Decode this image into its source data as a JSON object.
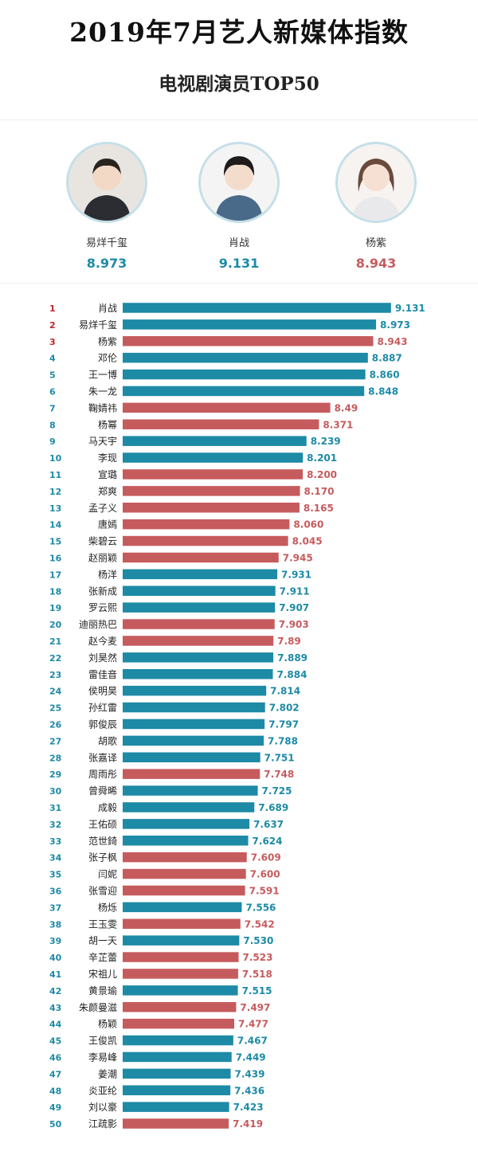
{
  "header": {
    "title": "2019年7月艺人新媒体指数",
    "subtitle": "电视剧演员TOP50"
  },
  "colors": {
    "teal": "#1d8aa6",
    "red": "#c65b5e",
    "rank_red": "#c0232b",
    "rank_teal": "#1d8aa6"
  },
  "top3": [
    {
      "name": "易烊千玺",
      "score": "8.973",
      "color": "teal"
    },
    {
      "name": "肖战",
      "score": "9.131",
      "color": "teal"
    },
    {
      "name": "杨紫",
      "score": "8.943",
      "color": "red"
    }
  ],
  "chart_data": {
    "type": "bar",
    "orientation": "horizontal",
    "value_labels": [
      "9.131",
      "8.973",
      "8.943",
      "8.887",
      "8.860",
      "8.848",
      "8.49",
      "8.371",
      "8.239",
      "8.201",
      "8.200",
      "8.170",
      "8.165",
      "8.060",
      "8.045",
      "7.945",
      "7.931",
      "7.911",
      "7.907",
      "7.903",
      "7.89",
      "7.889",
      "7.884",
      "7.814",
      "7.802",
      "7.797",
      "7.788",
      "7.751",
      "7.748",
      "7.725",
      "7.689",
      "7.637",
      "7.624",
      "7.609",
      "7.600",
      "7.591",
      "7.556",
      "7.542",
      "7.530",
      "7.523",
      "7.518",
      "7.515",
      "7.497",
      "7.477",
      "7.467",
      "7.449",
      "7.439",
      "7.436",
      "7.423",
      "7.419"
    ],
    "categories": [
      "肖战",
      "易烊千玺",
      "杨紫",
      "邓伦",
      "王一博",
      "朱一龙",
      "鞠婧祎",
      "杨幂",
      "马天宇",
      "李现",
      "宣璐",
      "郑爽",
      "孟子义",
      "唐嫣",
      "柴碧云",
      "赵丽颖",
      "杨洋",
      "张新成",
      "罗云熙",
      "迪丽热巴",
      "赵今麦",
      "刘昊然",
      "雷佳音",
      "侯明昊",
      "孙红雷",
      "郭俊辰",
      "胡歌",
      "张嘉译",
      "周雨彤",
      "曾舜晞",
      "成毅",
      "王佑硕",
      "范世錡",
      "张子枫",
      "闫妮",
      "张雪迎",
      "杨烁",
      "王玉雯",
      "胡一天",
      "辛芷蕾",
      "宋祖儿",
      "黄景瑜",
      "朱颜曼滋",
      "杨颖",
      "王俊凯",
      "李易峰",
      "姜潮",
      "炎亚纶",
      "刘以豪",
      "江疏影"
    ],
    "values": [
      9.131,
      8.973,
      8.943,
      8.887,
      8.86,
      8.848,
      8.49,
      8.371,
      8.239,
      8.201,
      8.2,
      8.17,
      8.165,
      8.06,
      8.045,
      7.945,
      7.931,
      7.911,
      7.907,
      7.903,
      7.89,
      7.889,
      7.884,
      7.814,
      7.802,
      7.797,
      7.788,
      7.751,
      7.748,
      7.725,
      7.689,
      7.637,
      7.624,
      7.609,
      7.6,
      7.591,
      7.556,
      7.542,
      7.53,
      7.523,
      7.518,
      7.515,
      7.497,
      7.477,
      7.467,
      7.449,
      7.439,
      7.436,
      7.423,
      7.419
    ],
    "colors": [
      "teal",
      "teal",
      "red",
      "teal",
      "teal",
      "teal",
      "red",
      "red",
      "teal",
      "teal",
      "red",
      "red",
      "red",
      "red",
      "red",
      "red",
      "teal",
      "teal",
      "teal",
      "red",
      "red",
      "teal",
      "teal",
      "teal",
      "teal",
      "teal",
      "teal",
      "teal",
      "red",
      "teal",
      "teal",
      "teal",
      "teal",
      "red",
      "red",
      "red",
      "teal",
      "red",
      "teal",
      "red",
      "red",
      "teal",
      "red",
      "red",
      "teal",
      "teal",
      "teal",
      "teal",
      "teal",
      "red"
    ],
    "ranks": [
      "1",
      "2",
      "3",
      "4",
      "5",
      "6",
      "7",
      "8",
      "9",
      "10",
      "11",
      "12",
      "13",
      "14",
      "15",
      "16",
      "17",
      "18",
      "19",
      "20",
      "21",
      "22",
      "23",
      "24",
      "25",
      "26",
      "27",
      "28",
      "29",
      "30",
      "31",
      "32",
      "33",
      "34",
      "35",
      "36",
      "37",
      "38",
      "39",
      "40",
      "41",
      "42",
      "43",
      "44",
      "45",
      "46",
      "47",
      "48",
      "49",
      "50"
    ],
    "xlim": [
      6.3,
      9.25
    ],
    "grid": false,
    "legend": "none"
  }
}
